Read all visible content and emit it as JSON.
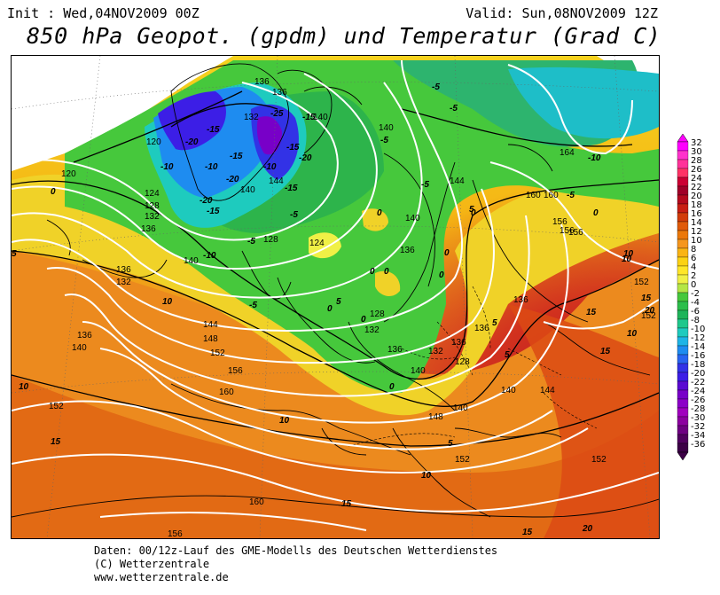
{
  "header": {
    "init": "Init : Wed,04NOV2009 00Z",
    "valid": "Valid: Sun,08NOV2009 12Z",
    "title": "850 hPa Geopot. (gpdm) und Temperatur (Grad C)"
  },
  "footer": {
    "line1": "Daten: 00/12z-Lauf des GME-Modells des Deutschen Wetterdienstes",
    "line2": "(C) Wetterzentrale",
    "line3": "www.wetterzentrale.de"
  },
  "legend": {
    "values": [
      "32",
      "30",
      "28",
      "26",
      "24",
      "22",
      "20",
      "18",
      "16",
      "14",
      "12",
      "10",
      "8",
      "6",
      "4",
      "2",
      "0",
      "-2",
      "-4",
      "-6",
      "-8",
      "-10",
      "-12",
      "-14",
      "-16",
      "-18",
      "-20",
      "-22",
      "-24",
      "-26",
      "-28",
      "-30",
      "-32",
      "-34",
      "-36"
    ],
    "colors": [
      "#ff00ff",
      "#ff33cc",
      "#ff3399",
      "#ff3366",
      "#cc0033",
      "#a00028",
      "#b40a1e",
      "#c81e14",
      "#d23c0a",
      "#e05a0a",
      "#eb780a",
      "#f5961e",
      "#fab414",
      "#fcd214",
      "#ffe628",
      "#f0f046",
      "#b4e646",
      "#46c83c",
      "#2dbe4b",
      "#1eb45a",
      "#1ec88c",
      "#1ecbbe",
      "#1eb4e6",
      "#1e8cf0",
      "#2864f0",
      "#3232e6",
      "#3c1ee6",
      "#5a0ad2",
      "#7800c8",
      "#8c00c8",
      "#a000be",
      "#8c00a0",
      "#6e0082",
      "#50005f",
      "#3c0046"
    ]
  },
  "geopotential_labels": [
    "136",
    "136",
    "132",
    "140",
    "120",
    "120",
    "124",
    "128",
    "132",
    "136",
    "140",
    "128",
    "124",
    "136",
    "132",
    "136",
    "140",
    "144",
    "148",
    "152",
    "156",
    "160",
    "152",
    "156",
    "160",
    "140",
    "144",
    "140",
    "144",
    "140",
    "136",
    "132",
    "128",
    "136",
    "128",
    "132",
    "136",
    "140",
    "140",
    "140",
    "148",
    "152",
    "152",
    "156",
    "160",
    "156",
    "164",
    "160",
    "156",
    "152",
    "152",
    "144",
    "136",
    "136"
  ],
  "temperature_labels": [
    "-5",
    "-5",
    "-10",
    "-15",
    "-20",
    "-25",
    "-10",
    "-15",
    "-20",
    "-10",
    "-15",
    "-20",
    "-15",
    "-15",
    "-20",
    "-15",
    "-5",
    "-5",
    "-5",
    "-10",
    "-5",
    "-5",
    "0",
    "0",
    "0",
    "0",
    "0",
    "0",
    "0",
    "5",
    "5",
    "10",
    "10",
    "10",
    "10",
    "15",
    "15",
    "15",
    "15",
    "15",
    "20",
    "10",
    "5",
    "5",
    "-10",
    "-5",
    "0",
    "0",
    "0",
    "0",
    "5",
    "5",
    "10",
    "10",
    "15",
    "20"
  ]
}
